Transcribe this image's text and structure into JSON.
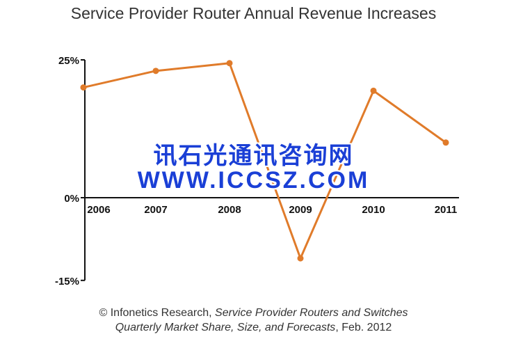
{
  "chart_data": {
    "type": "line",
    "title": "Service Provider Router Annual Revenue Increases",
    "categories": [
      "2006",
      "2007",
      "2008",
      "2009",
      "2010",
      "2011"
    ],
    "series": [
      {
        "name": "Annual revenue increase",
        "values": [
          20,
          23,
          24.4,
          -11,
          19.4,
          10
        ],
        "color": "#e07b2a"
      }
    ],
    "yticks": [
      "25%",
      "0%",
      "-15%"
    ],
    "ytick_values": [
      25,
      0,
      -15
    ],
    "ylim": [
      -15,
      25
    ],
    "xlabel": "",
    "ylabel": "",
    "grid": false
  },
  "watermark": {
    "line1": "讯石光通讯咨询网",
    "line2": "WWW.ICCSZ.COM"
  },
  "source": {
    "line1_prefix": "© Infonetics Research, ",
    "line1_italic": "Service Provider Routers and Switches",
    "line2_italic": "Quarterly Market Share, Size, and Forecasts",
    "line2_suffix": ", Feb. 2012"
  }
}
